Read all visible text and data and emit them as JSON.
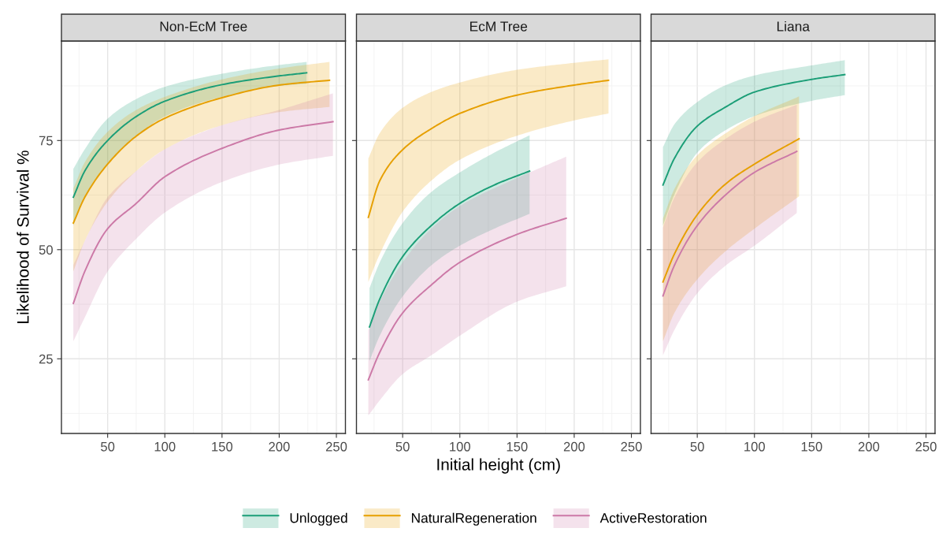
{
  "chart_data": [
    {
      "type": "line",
      "title": "Non-EcM Tree",
      "ylabel": "Likelihood of Survival %",
      "xlim": [
        9.6,
        257.9
      ],
      "xticks": [
        50,
        100,
        150,
        200,
        250
      ],
      "ylim": [
        7.9,
        97.8
      ],
      "yticks": [
        25,
        50,
        75
      ],
      "grid": true,
      "legend": "bottom",
      "series": [
        {
          "name": "Unlogged",
          "color": "#1b9e77",
          "x": [
            20,
            30,
            50,
            75,
            100,
            150,
            200,
            224
          ],
          "values": [
            62,
            68,
            75,
            80.5,
            84,
            87.8,
            89.8,
            90.5
          ],
          "lower": [
            55.5,
            62,
            69.5,
            76,
            80.5,
            85,
            87.5,
            88
          ],
          "upper": [
            68.5,
            73,
            80,
            84.5,
            87.3,
            90.3,
            92.3,
            93
          ]
        },
        {
          "name": "NaturalRegeneration",
          "color": "#e69f00",
          "x": [
            20,
            30,
            50,
            75,
            100,
            150,
            200,
            244
          ],
          "values": [
            56.1,
            62,
            69.6,
            76,
            80.1,
            84.8,
            87.7,
            88.8
          ],
          "lower": [
            45,
            52,
            61,
            68,
            73,
            78.5,
            81.5,
            82.7
          ],
          "upper": [
            64,
            70,
            77,
            82,
            85,
            89,
            91.5,
            93
          ]
        },
        {
          "name": "ActiveRestoration",
          "color": "#cc79a7",
          "x": [
            20,
            30,
            50,
            75,
            100,
            150,
            200,
            247
          ],
          "values": [
            37.7,
            45,
            54.8,
            60.6,
            66.7,
            73.2,
            77.4,
            79.3
          ],
          "lower": [
            29,
            34.5,
            45,
            52.5,
            58.5,
            65.5,
            69.5,
            71.5
          ],
          "upper": [
            46.5,
            52,
            62,
            68,
            73,
            78.5,
            82,
            85.8
          ]
        }
      ]
    },
    {
      "type": "line",
      "title": "EcM Tree",
      "xlabel": "Initial height (cm)",
      "xlim": [
        9.6,
        257.9
      ],
      "xticks": [
        50,
        100,
        150,
        200,
        250
      ],
      "ylim": [
        7.9,
        97.8
      ],
      "yticks": [
        25,
        50,
        75
      ],
      "grid": true,
      "tick_labels": "x",
      "series": [
        {
          "color": "#1b9e77",
          "x": [
            21,
            30,
            50,
            75,
            100,
            130,
            161
          ],
          "values": [
            32.3,
            38.7,
            48.4,
            55.5,
            60.6,
            64.8,
            68.0
          ],
          "lower": [
            24.5,
            30.3,
            39.3,
            46.4,
            50.9,
            54.8,
            58.2
          ],
          "upper": [
            41.2,
            47.1,
            56.1,
            63.2,
            67.7,
            72.2,
            76.2
          ]
        },
        {
          "color": "#e69f00",
          "x": [
            20,
            30,
            50,
            75,
            100,
            150,
            200,
            230
          ],
          "values": [
            57.4,
            65.8,
            72.9,
            77.7,
            81.2,
            85.4,
            87.7,
            88.8
          ],
          "lower": [
            42.6,
            49.0,
            58.7,
            65.8,
            70.6,
            76.1,
            79.6,
            81.2
          ],
          "upper": [
            70.9,
            76.7,
            82.5,
            86.1,
            88.3,
            91.2,
            92.8,
            93.6
          ]
        },
        {
          "color": "#cc79a7",
          "x": [
            20,
            30,
            50,
            75,
            100,
            150,
            193
          ],
          "values": [
            20.2,
            26.5,
            35.5,
            41.9,
            47.1,
            53.5,
            57.2
          ],
          "lower": [
            12.0,
            15.5,
            21.5,
            25.8,
            30.3,
            38.1,
            41.6
          ],
          "upper": [
            31.6,
            38.1,
            47.1,
            54.8,
            60.0,
            66.4,
            71.3
          ]
        }
      ]
    },
    {
      "type": "line",
      "title": "Liana",
      "xlim": [
        9.6,
        257.9
      ],
      "xticks": [
        50,
        100,
        150,
        200,
        250
      ],
      "ylim": [
        7.9,
        97.8
      ],
      "yticks": [
        25,
        50,
        75
      ],
      "grid": true,
      "tick_labels": "x",
      "series": [
        {
          "color": "#1b9e77",
          "x": [
            20,
            30,
            50,
            75,
            100,
            150,
            179
          ],
          "values": [
            64.8,
            70.9,
            78.3,
            82.7,
            86.1,
            89.0,
            90.1
          ],
          "lower": [
            55.5,
            62.6,
            72.2,
            77.4,
            80.6,
            84.1,
            85.4
          ],
          "upper": [
            73.5,
            78.7,
            83.8,
            87.7,
            89.9,
            92.2,
            93.4
          ]
        },
        {
          "color": "#e69f00",
          "x": [
            20,
            30,
            50,
            75,
            100,
            139
          ],
          "values": [
            42.6,
            49.0,
            58.0,
            65.1,
            69.6,
            75.4
          ],
          "lower": [
            29.0,
            35.5,
            43.2,
            49.7,
            54.8,
            62.2
          ],
          "upper": [
            57.1,
            63.9,
            71.6,
            76.7,
            80.6,
            85.1
          ]
        },
        {
          "color": "#cc79a7",
          "x": [
            20,
            30,
            50,
            75,
            100,
            137
          ],
          "values": [
            39.4,
            46.4,
            55.5,
            62.6,
            67.7,
            72.5
          ],
          "lower": [
            25.8,
            31.6,
            40.0,
            46.4,
            50.9,
            58.4
          ],
          "upper": [
            55.1,
            61.9,
            70.0,
            75.4,
            79.3,
            83.2
          ]
        }
      ]
    }
  ]
}
